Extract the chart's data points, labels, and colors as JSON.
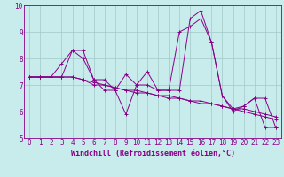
{
  "xlabel": "Windchill (Refroidissement éolien,°C)",
  "bg_color": "#c8ecec",
  "grid_color": "#a0c8c8",
  "line_color": "#880088",
  "xlim": [
    -0.5,
    23.5
  ],
  "ylim": [
    5,
    10
  ],
  "xticks": [
    0,
    1,
    2,
    3,
    4,
    5,
    6,
    7,
    8,
    9,
    10,
    11,
    12,
    13,
    14,
    15,
    16,
    17,
    18,
    19,
    20,
    21,
    22,
    23
  ],
  "yticks": [
    5,
    6,
    7,
    8,
    9,
    10
  ],
  "series": [
    [
      7.3,
      7.3,
      7.3,
      7.8,
      8.3,
      8.3,
      7.2,
      7.2,
      6.8,
      5.9,
      7.0,
      7.5,
      6.8,
      6.8,
      9.0,
      9.2,
      9.5,
      8.6,
      6.6,
      6.0,
      6.2,
      6.5,
      5.4,
      5.4
    ],
    [
      7.3,
      7.3,
      7.3,
      7.3,
      8.3,
      8.0,
      7.2,
      6.8,
      6.8,
      7.4,
      7.0,
      7.0,
      6.8,
      6.8,
      6.8,
      9.5,
      9.8,
      8.6,
      6.6,
      6.1,
      6.2,
      6.5,
      6.5,
      5.4
    ],
    [
      7.3,
      7.3,
      7.3,
      7.3,
      7.3,
      7.2,
      7.0,
      7.0,
      6.9,
      6.8,
      6.7,
      6.7,
      6.6,
      6.5,
      6.5,
      6.4,
      6.3,
      6.3,
      6.2,
      6.1,
      6.0,
      5.9,
      5.8,
      5.7
    ],
    [
      7.3,
      7.3,
      7.3,
      7.3,
      7.3,
      7.2,
      7.1,
      7.0,
      6.9,
      6.8,
      6.8,
      6.7,
      6.6,
      6.6,
      6.5,
      6.4,
      6.4,
      6.3,
      6.2,
      6.1,
      6.1,
      6.0,
      5.9,
      5.8
    ]
  ],
  "tick_fontsize": 5.5,
  "label_fontsize": 6,
  "marker": "+",
  "markersize": 3,
  "linewidth": 0.7
}
